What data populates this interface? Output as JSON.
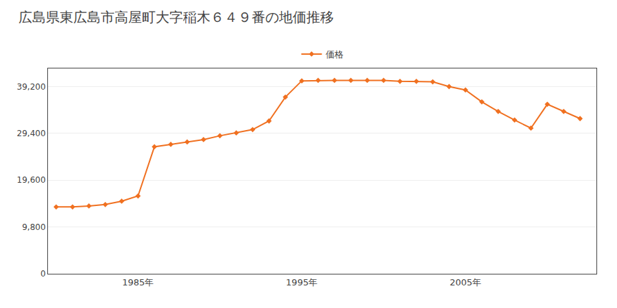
{
  "chart_data": {
    "type": "line",
    "title": "広島県東広島市高屋町大字稲木６４９番の地価推移",
    "series": [
      {
        "name": "価格",
        "color": "#f07020",
        "marker": "diamond",
        "values": [
          14000,
          14000,
          14200,
          14500,
          15200,
          16300,
          26600,
          27100,
          27600,
          28100,
          28900,
          29500,
          30200,
          32000,
          37000,
          40400,
          40500,
          40500,
          40500,
          40500,
          40500,
          40300,
          40300,
          40200,
          39200,
          38500,
          36000,
          34000,
          32200,
          30500,
          35500,
          34000,
          32500
        ]
      }
    ],
    "x": [
      1980,
      1981,
      1982,
      1983,
      1984,
      1985,
      1986,
      1987,
      1988,
      1989,
      1990,
      1991,
      1992,
      1993,
      1994,
      1995,
      1996,
      1997,
      1998,
      1999,
      2000,
      2001,
      2002,
      2003,
      2004,
      2005,
      2006,
      2007,
      2008,
      2009,
      2010,
      2011,
      2012
    ],
    "xlim": [
      1979.5,
      2013
    ],
    "xticks": [
      {
        "value": 1985,
        "label": "1985年"
      },
      {
        "value": 1995,
        "label": "1995年"
      },
      {
        "value": 2005,
        "label": "2005年"
      }
    ],
    "ylim": [
      0,
      43000
    ],
    "yticks": [
      0,
      {
        "value": 9800,
        "label": "9,800"
      },
      {
        "value": 19600,
        "label": "19,600"
      },
      {
        "value": 29400,
        "label": "29,400"
      },
      {
        "value": 39200,
        "label": "39,200"
      }
    ],
    "grid": true,
    "legend": "top"
  }
}
